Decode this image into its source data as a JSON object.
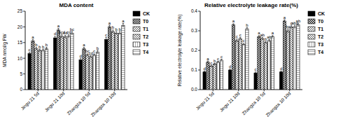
{
  "chart_data": [
    {
      "type": "bar",
      "title": "MDA content",
      "y_label": "MDA nmol/g FW",
      "categories": [
        "Jingu 21 5d",
        "Jingu 21 10d",
        "Zhangza 10 5d",
        "Zhangza 10 10d"
      ],
      "ylim": [
        0,
        25
      ],
      "yticks": [
        0,
        5,
        10,
        15,
        20,
        25
      ],
      "legend": "right",
      "series": [
        {
          "name": "CK",
          "color": "#000000",
          "values": [
            11.5,
            16.5,
            9.5,
            16.0
          ],
          "errors": [
            0.4,
            0.5,
            0.5,
            0.6
          ],
          "annotations": [
            "c",
            "d",
            "d",
            "c"
          ]
        },
        {
          "name": "T0",
          "color": "#ffffff",
          "values": [
            15.5,
            19.0,
            13.0,
            20.0
          ],
          "errors": [
            0.5,
            0.5,
            0.5,
            0.5
          ],
          "annotations": [
            "a",
            "a",
            "a",
            "a"
          ]
        },
        {
          "name": "T1",
          "color": "#ffffff",
          "values": [
            13.0,
            17.0,
            11.0,
            18.5
          ],
          "errors": [
            0.5,
            0.6,
            0.4,
            0.5
          ],
          "annotations": [
            "b",
            "bcd",
            "bc",
            "b"
          ]
        },
        {
          "name": "T2",
          "color": "#ffffff",
          "values": [
            12.5,
            16.8,
            10.5,
            18.0
          ],
          "errors": [
            0.4,
            0.5,
            0.4,
            0.5
          ],
          "annotations": [
            "b",
            "cd",
            "cd",
            "b"
          ]
        },
        {
          "name": "T3",
          "color": "#ffffff",
          "values": [
            12.5,
            17.0,
            11.0,
            18.0
          ],
          "errors": [
            0.4,
            0.5,
            0.4,
            0.5
          ],
          "annotations": [
            "b",
            "cd",
            "c",
            "b"
          ]
        },
        {
          "name": "T4",
          "color": "#ffffff",
          "values": [
            13.0,
            18.0,
            12.0,
            20.5
          ],
          "errors": [
            0.5,
            0.5,
            0.5,
            0.6
          ],
          "annotations": [
            "b",
            "bc",
            "b",
            "a"
          ]
        }
      ]
    },
    {
      "type": "bar",
      "title": "Relative electrolyte leakage rate(%)",
      "y_label": "Relative electrolyte leakage rate(%)",
      "categories": [
        "Jingu 21 5d",
        "Jingu 21 10d",
        "Zhangza 10 5d",
        "Zhangza 10 10d"
      ],
      "ylim": [
        0,
        0.4
      ],
      "yticks": [
        {
          "value": 0,
          "label": "0.0"
        },
        0.1,
        0.2,
        0.3,
        0.4
      ],
      "legend": "right",
      "series": [
        {
          "name": "CK",
          "color": "#000000",
          "values": [
            0.09,
            0.1,
            0.085,
            0.09
          ],
          "errors": [
            0.005,
            0.005,
            0.005,
            0.005
          ],
          "annotations": [
            "d",
            "d",
            "c",
            "d"
          ]
        },
        {
          "name": "T0",
          "color": "#ffffff",
          "values": [
            0.14,
            0.33,
            0.27,
            0.35
          ],
          "errors": [
            0.006,
            0.006,
            0.006,
            0.006
          ],
          "annotations": [
            "a",
            "a",
            "a",
            "a"
          ]
        },
        {
          "name": "T1",
          "color": "#ffffff",
          "values": [
            0.12,
            0.25,
            0.26,
            0.3
          ],
          "errors": [
            0.005,
            0.008,
            0.006,
            0.01
          ],
          "annotations": [
            "c",
            "c",
            "ab",
            "bc"
          ]
        },
        {
          "name": "T2",
          "color": "#ffffff",
          "values": [
            0.13,
            0.26,
            0.24,
            0.32
          ],
          "errors": [
            0.005,
            0.006,
            0.006,
            0.008
          ],
          "annotations": [
            "b",
            "c",
            "b",
            "c"
          ]
        },
        {
          "name": "T3",
          "color": "#ffffff",
          "values": [
            0.14,
            0.23,
            0.25,
            0.32
          ],
          "errors": [
            0.005,
            0.006,
            0.006,
            0.008
          ],
          "annotations": [
            "c",
            "c",
            "ab",
            "abc"
          ]
        },
        {
          "name": "T4",
          "color": "#ffffff",
          "values": [
            0.15,
            0.31,
            0.27,
            0.33
          ],
          "errors": [
            0.005,
            0.006,
            0.006,
            0.008
          ],
          "annotations": [
            "c",
            "b",
            "a",
            "ab"
          ]
        }
      ]
    }
  ]
}
